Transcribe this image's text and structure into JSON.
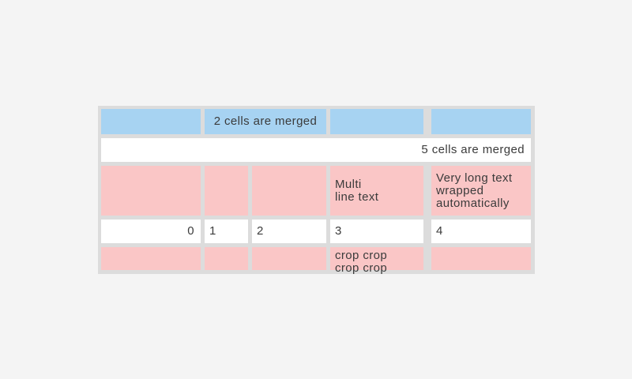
{
  "colors": {
    "page_bg": "#f4f4f4",
    "grid": "#dcdcdc",
    "blue": "#a7d3f2",
    "pink": "#fac6c6",
    "cell_white": "#ffffff",
    "text": "#3b3b3b"
  },
  "table": {
    "rows": [
      {
        "bg": "blue",
        "cells": [
          {
            "text": ""
          },
          {
            "text": "2 cells are merged",
            "span": 2,
            "align": "center"
          },
          {
            "text": ""
          },
          {
            "text": ""
          }
        ]
      },
      {
        "bg": "white",
        "cells": [
          {
            "text": "5 cells are merged",
            "span": 5,
            "align": "right"
          }
        ]
      },
      {
        "bg": "pink",
        "cells": [
          {
            "text": ""
          },
          {
            "text": ""
          },
          {
            "text": ""
          },
          {
            "text": "Multi\nline text"
          },
          {
            "text": "Very long text wrapped automatically"
          }
        ]
      },
      {
        "bg": "white",
        "cells": [
          {
            "text": "0",
            "align": "right"
          },
          {
            "text": "1"
          },
          {
            "text": "2"
          },
          {
            "text": "3"
          },
          {
            "text": "4"
          }
        ]
      },
      {
        "bg": "pink",
        "cells": [
          {
            "text": ""
          },
          {
            "text": ""
          },
          {
            "text": ""
          },
          {
            "text": "crop crop\ncrop crop",
            "crop": true
          },
          {
            "text": ""
          }
        ]
      }
    ]
  }
}
